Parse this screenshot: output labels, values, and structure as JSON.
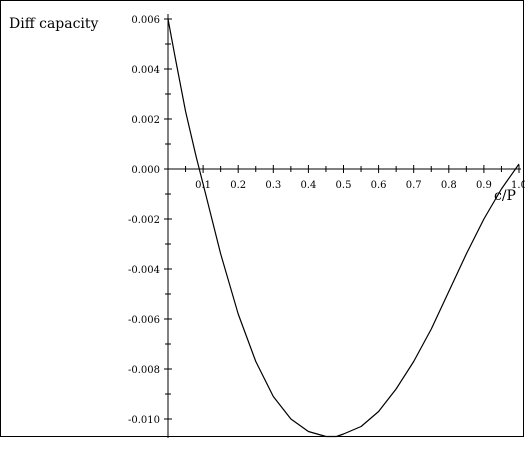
{
  "chart_data": {
    "type": "line",
    "title": "",
    "xlabel": "c/P",
    "ylabel": "Diff capacity",
    "xlim": [
      0.0,
      1.0
    ],
    "ylim": [
      -0.0108,
      0.0062
    ],
    "x_ticks": [
      "0.1",
      "0.2",
      "0.3",
      "0.4",
      "0.5",
      "0.6",
      "0.7",
      "0.8",
      "0.9",
      "1.0"
    ],
    "y_ticks": [
      "0.006",
      "0.004",
      "0.002",
      "0.000",
      "-0.002",
      "-0.004",
      "-0.006",
      "-0.008",
      "-0.010"
    ],
    "y_tick_values": [
      0.006,
      0.004,
      0.002,
      0.0,
      -0.002,
      -0.004,
      -0.006,
      -0.008,
      -0.01
    ],
    "series": [
      {
        "x": [
          0.0,
          0.02,
          0.05,
          0.08,
          0.1,
          0.15,
          0.2,
          0.25,
          0.3,
          0.35,
          0.4,
          0.45,
          0.48,
          0.5,
          0.55,
          0.6,
          0.65,
          0.7,
          0.75,
          0.8,
          0.85,
          0.9,
          0.95,
          1.0
        ],
        "y": [
          0.006,
          0.0045,
          0.0023,
          0.0005,
          -0.0006,
          -0.0034,
          -0.0058,
          -0.0077,
          -0.0091,
          -0.01,
          -0.0105,
          -0.0107,
          -0.0107,
          -0.0106,
          -0.0103,
          -0.0097,
          -0.0088,
          -0.0077,
          -0.0064,
          -0.0049,
          -0.0034,
          -0.002,
          -0.0008,
          0.0002
        ]
      }
    ],
    "grid": false,
    "line_color": "#000000"
  }
}
